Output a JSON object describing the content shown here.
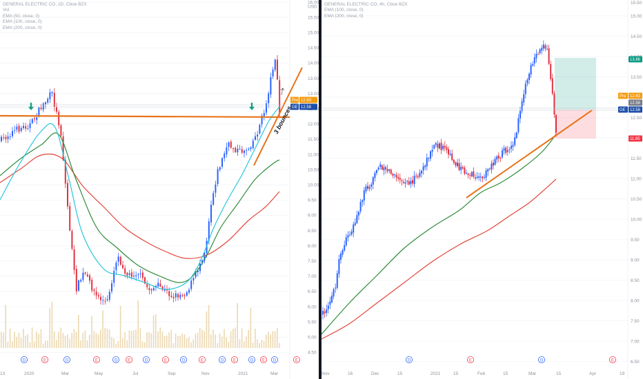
{
  "colors": {
    "up": "#2962ff",
    "down": "#e03040",
    "ema50": "#26c6da",
    "ema100": "#2e8b3a",
    "ema200": "#e0453a",
    "trend": "#e8731a",
    "volume": "#ecd8b0",
    "grid": "#eef0f4",
    "pre_tag": "#f39c12",
    "ge_tag": "#1e4fa8",
    "target_tag": "#089981",
    "stop_tag": "#f23645",
    "arrow": "#16a085"
  },
  "left": {
    "legend": {
      "title": "GENERAL ELECTRIC CO, 1D, Cboe BZX",
      "vol": "Vol",
      "ema1": "EMA (50, close, 0)",
      "ema2": "EMA (100, close, 0)",
      "ema3": "EMA (200, close, 0)"
    },
    "currency": "USD",
    "annotation": "3 bounces",
    "pre_label": "Pre",
    "pre_value": "12.63",
    "ge_label": "GE",
    "ge_value": "12.58",
    "event_markers": [
      "D",
      "E",
      "D",
      "E",
      "D",
      "E",
      "D",
      "E",
      "D",
      "E",
      "D",
      "E",
      "D",
      "E",
      "D",
      "E"
    ],
    "x_labels": [
      {
        "label": "13"
      },
      {
        "label": "2020"
      },
      {
        "label": "Mar"
      },
      {
        "label": "May"
      },
      {
        "label": "Jul"
      },
      {
        "label": "Sep"
      },
      {
        "label": "Nov"
      },
      {
        "label": "2021"
      },
      {
        "label": "Mar"
      }
    ]
  },
  "right": {
    "legend": {
      "title": "GENERAL ELECTRIC CO, 4h, Cboe BZX",
      "ema1": "EMA (100, close, 0)",
      "ema2": "EMA (200, close, 0)"
    },
    "pre_label": "Pre",
    "pre_value": "12.63",
    "ge_label": "GE",
    "ge_value": "12.58",
    "other_value": "12.58",
    "target_value": "13.86",
    "stop_value": "11.85",
    "event_markers": [
      "D",
      "E",
      "D",
      "E"
    ],
    "x_labels": [
      {
        "label": "Nov"
      },
      {
        "label": "16"
      },
      {
        "label": "Dec"
      },
      {
        "label": "15"
      },
      {
        "label": "2021"
      },
      {
        "label": "15"
      },
      {
        "label": "Feb"
      },
      {
        "label": "15"
      },
      {
        "label": "Mar"
      },
      {
        "label": "15"
      },
      {
        "label": "Apr"
      },
      {
        "label": "19"
      }
    ]
  },
  "chart_data": [
    {
      "type": "candlestick",
      "timeframe": "1D",
      "yaxis_ticks": [
        "16.00",
        "15.50",
        "15.00",
        "14.50",
        "14.00",
        "13.50",
        "13.00",
        "12.50",
        "12.00",
        "11.50",
        "11.00",
        "10.50",
        "10.00",
        "9.50",
        "9.00",
        "8.50",
        "8.00",
        "7.50",
        "7.00",
        "6.50",
        "6.00",
        "5.50",
        "5.00",
        "4.50"
      ],
      "ylim": [
        4.3,
        16.2
      ],
      "series": [
        {
          "name": "GE price",
          "x": [
            "2019-12",
            "2020-01",
            "2020-02",
            "2020-03",
            "2020-04",
            "2020-05",
            "2020-06",
            "2020-07",
            "2020-08",
            "2020-09",
            "2020-10",
            "2020-11",
            "2020-12",
            "2021-01",
            "2021-02",
            "2021-03"
          ],
          "close": [
            11.4,
            12.1,
            12.6,
            7.2,
            6.6,
            6.1,
            6.9,
            6.6,
            6.5,
            6.3,
            7.3,
            9.6,
            10.8,
            11.3,
            12.8,
            12.58
          ]
        },
        {
          "name": "EMA (50, close, 0)",
          "x": [
            "2019-12",
            "2020-02",
            "2020-03",
            "2020-05",
            "2020-07",
            "2020-09",
            "2020-11",
            "2021-01",
            "2021-03"
          ],
          "values": [
            10.6,
            12.0,
            10.2,
            7.6,
            6.7,
            6.5,
            8.3,
            11.0,
            12.5
          ]
        },
        {
          "name": "EMA (100, close, 0)",
          "x": [
            "2019-12",
            "2020-02",
            "2020-03",
            "2020-05",
            "2020-07",
            "2020-09",
            "2020-11",
            "2021-01",
            "2021-03"
          ],
          "values": [
            10.2,
            11.5,
            11.0,
            8.6,
            7.5,
            6.8,
            7.4,
            9.2,
            11.0
          ]
        },
        {
          "name": "EMA (200, close, 0)",
          "x": [
            "2019-12",
            "2020-02",
            "2020-04",
            "2020-06",
            "2020-08",
            "2020-10",
            "2020-12",
            "2021-03"
          ],
          "values": [
            10.0,
            11.0,
            9.8,
            8.8,
            8.1,
            7.4,
            8.0,
            9.8
          ]
        }
      ],
      "levels": {
        "horizontal_support": 12.18,
        "pre": 12.63,
        "last": 12.58
      }
    },
    {
      "type": "candlestick",
      "timeframe": "4h",
      "yaxis_ticks": [
        "15.00",
        "14.50",
        "14.00",
        "13.50",
        "13.00",
        "12.50",
        "12.00",
        "11.50",
        "11.00",
        "10.50",
        "10.00",
        "9.50",
        "9.00",
        "8.50",
        "8.00",
        "7.50",
        "7.00",
        "6.50"
      ],
      "ylim": [
        6.4,
        15.2
      ],
      "series": [
        {
          "name": "GE price",
          "x": [
            "Nov",
            "16",
            "Dec",
            "15",
            "2021",
            "15",
            "Feb",
            "15",
            "Mar",
            "15"
          ],
          "close": [
            7.5,
            9.6,
            10.2,
            11.0,
            10.6,
            11.3,
            10.7,
            11.5,
            13.5,
            12.58
          ]
        },
        {
          "name": "EMA (100, close, 0)",
          "x": [
            "Nov",
            "16",
            "Dec",
            "15",
            "2021",
            "15",
            "Feb",
            "15",
            "Mar",
            "15"
          ],
          "values": [
            7.0,
            7.8,
            8.8,
            9.6,
            10.2,
            10.6,
            10.9,
            11.2,
            11.6,
            11.9
          ]
        },
        {
          "name": "EMA (200, close, 0)",
          "x": [
            "Nov",
            "16",
            "Dec",
            "15",
            "2021",
            "15",
            "Feb",
            "15",
            "Mar",
            "15"
          ],
          "values": [
            7.0,
            7.5,
            8.2,
            8.8,
            9.4,
            9.8,
            10.1,
            10.4,
            10.8,
            11.2
          ]
        }
      ],
      "levels": {
        "pre": 12.63,
        "last": 12.58,
        "target": 13.86,
        "stop": 11.85
      }
    }
  ]
}
